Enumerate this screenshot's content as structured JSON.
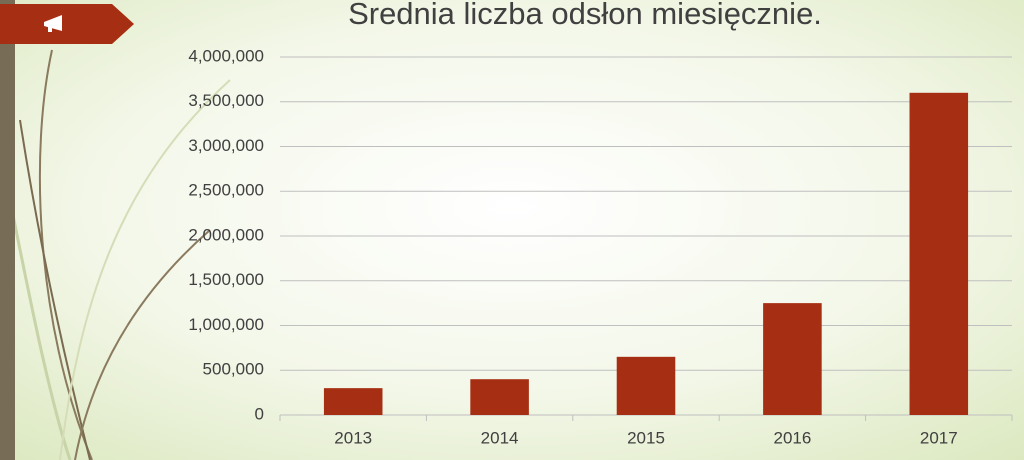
{
  "chart_data": {
    "type": "bar",
    "title": "Srednia liczba odsłon miesięcznie.",
    "categories": [
      "2013",
      "2014",
      "2015",
      "2016",
      "2017"
    ],
    "values": [
      300000,
      400000,
      650000,
      1250000,
      3600000
    ],
    "color": "#a62e12",
    "ylim": [
      0,
      4000000
    ],
    "yticks": [
      0,
      {
        "value": 500000,
        "label": "500,000"
      },
      {
        "value": 1000000,
        "label": "1,000,000"
      },
      {
        "value": 1500000,
        "label": "1,500,000"
      },
      {
        "value": 2000000,
        "label": "2,000,000"
      },
      {
        "value": 2500000,
        "label": "2,500,000"
      },
      {
        "value": 3000000,
        "label": "3,000,000"
      },
      {
        "value": 3500000,
        "label": "3,500,000"
      },
      {
        "value": 4000000,
        "label": "4,000,000"
      }
    ],
    "grid": true
  }
}
